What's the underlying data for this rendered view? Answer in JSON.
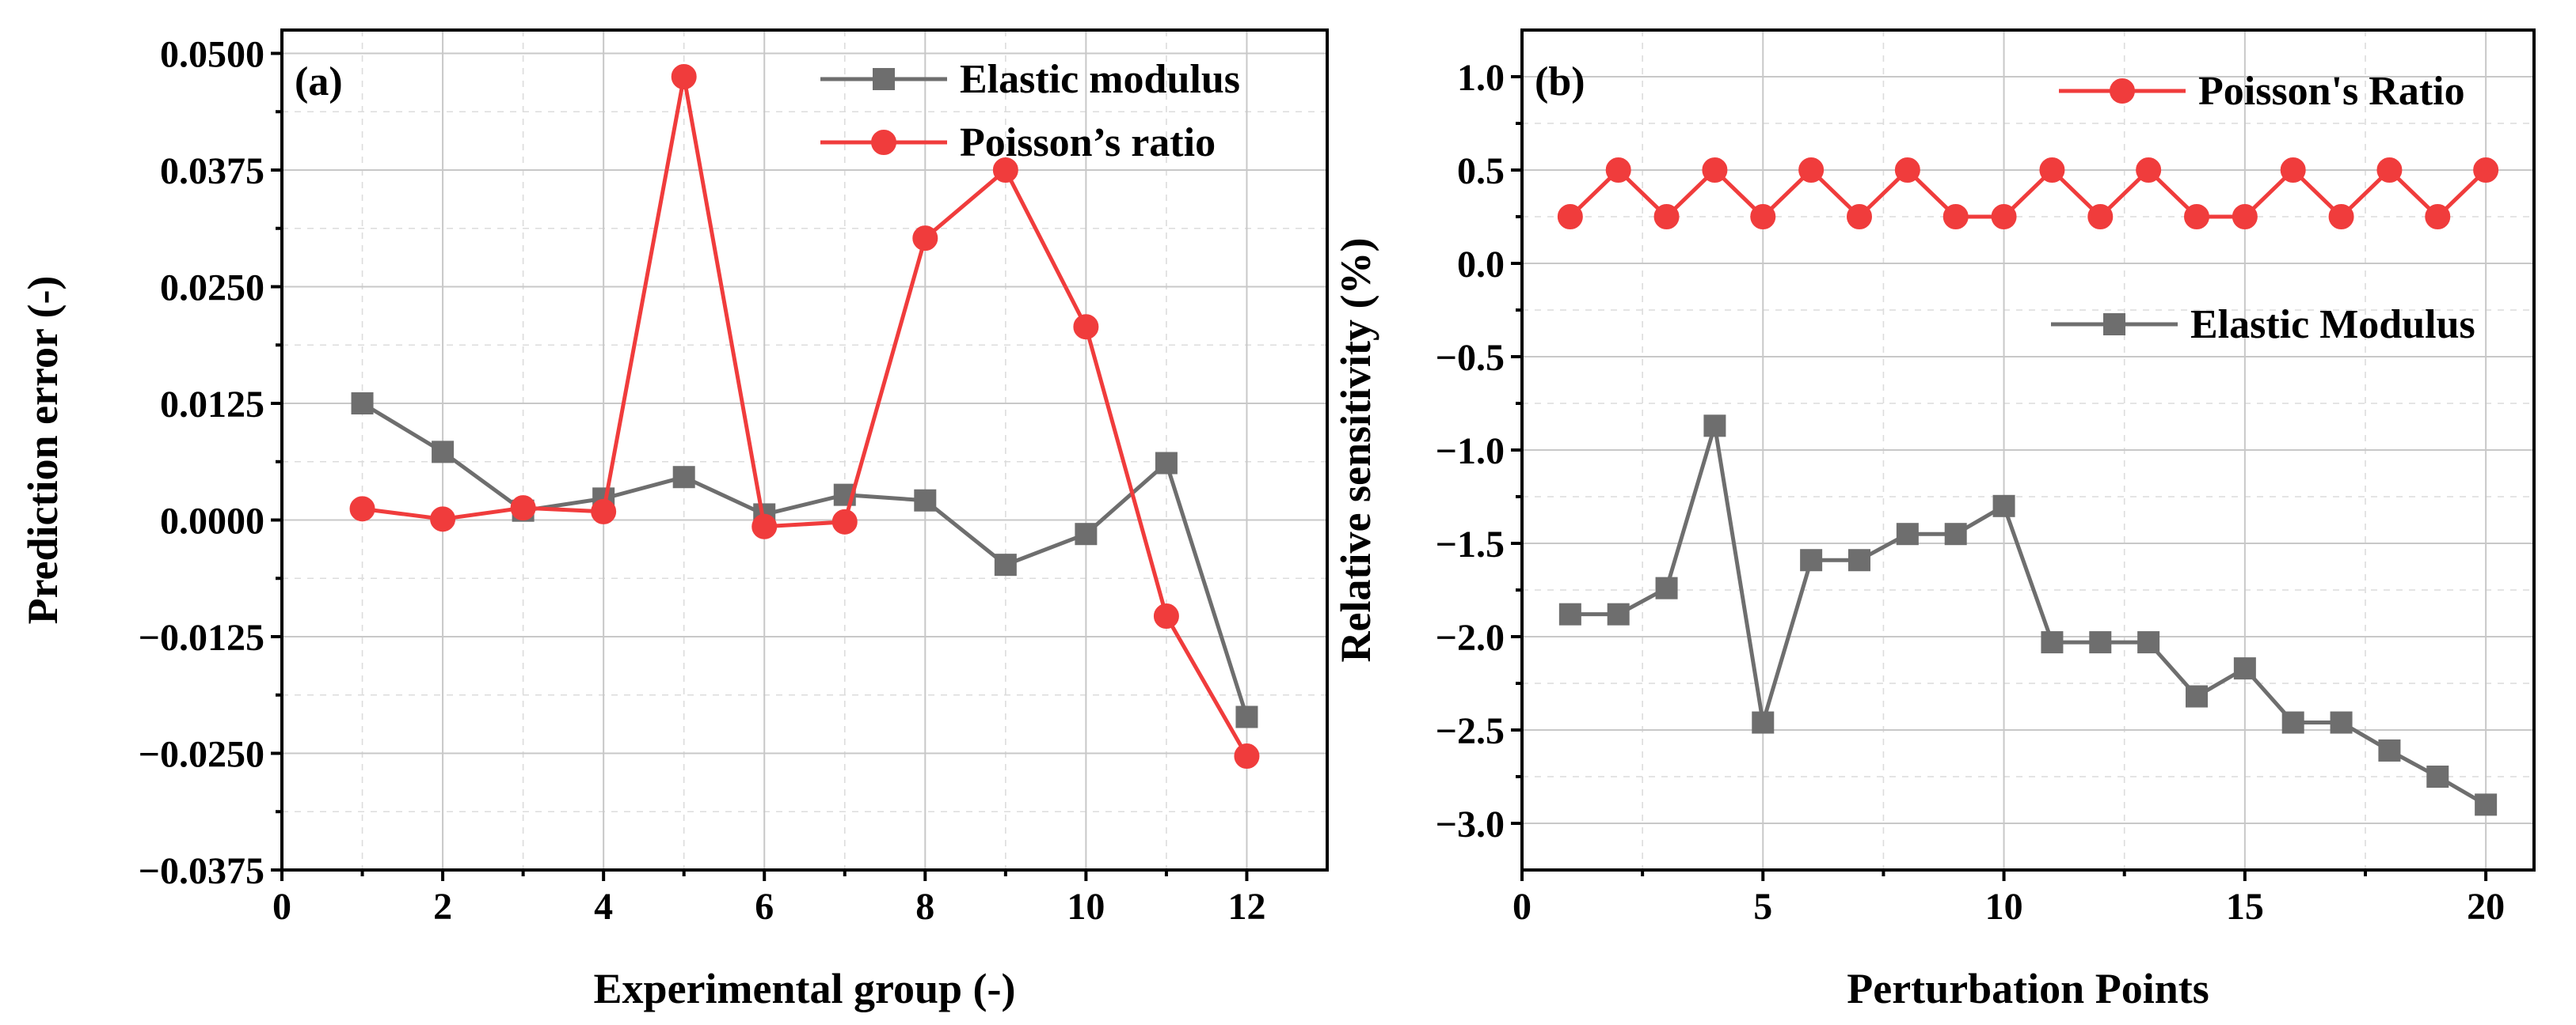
{
  "chart_data": [
    {
      "type": "line",
      "panel_label": "(a)",
      "xlabel": "Experimental group (-)",
      "ylabel": "Prediction error (-)",
      "xlim": [
        0,
        13
      ],
      "ylim": [
        -0.0375,
        0.0525
      ],
      "xticks": [
        0,
        2,
        4,
        6,
        8,
        10,
        12
      ],
      "xtick_labels": [
        "0",
        "2",
        "4",
        "6",
        "8",
        "10",
        "12"
      ],
      "yticks": [
        -0.0375,
        -0.025,
        -0.0125,
        0,
        0.0125,
        0.025,
        0.0375,
        0.05
      ],
      "ytick_labels": [
        "−0.0375",
        "−0.0250",
        "−0.0125",
        "0.0000",
        "0.0125",
        "0.0250",
        "0.0375",
        "0.0500"
      ],
      "grid": true,
      "legend_position": "top-right",
      "series": [
        {
          "name": "Elastic modulus",
          "color": "#6e6e6e",
          "marker": "square",
          "x": [
            1,
            2,
            3,
            4,
            5,
            6,
            7,
            8,
            9,
            10,
            11,
            12
          ],
          "values": [
            0.0125,
            0.0073,
            0.001,
            0.0023,
            0.0046,
            0.0006,
            0.0027,
            0.0021,
            -0.0048,
            -0.0015,
            0.0061,
            -0.0211
          ]
        },
        {
          "name": "Poisson’s ratio",
          "color": "#f03c3c",
          "marker": "circle",
          "x": [
            1,
            2,
            3,
            4,
            5,
            6,
            7,
            8,
            9,
            10,
            11,
            12
          ],
          "values": [
            0.0012,
            0.0001,
            0.0013,
            0.0009,
            0.0475,
            -0.0007,
            -0.0002,
            0.0302,
            0.0375,
            0.0207,
            -0.0103,
            -0.0253
          ]
        }
      ]
    },
    {
      "type": "line",
      "panel_label": "(b)",
      "xlabel": "Perturbation Points",
      "ylabel": "Relative sensitivity (%)",
      "xlim": [
        0,
        21
      ],
      "ylim": [
        -3.25,
        1.25
      ],
      "xticks": [
        0,
        5,
        10,
        15,
        20
      ],
      "xtick_labels": [
        "0",
        "5",
        "10",
        "15",
        "20"
      ],
      "yticks": [
        -3,
        -2.5,
        -2,
        -1.5,
        -1,
        -0.5,
        0,
        0.5,
        1
      ],
      "ytick_labels": [
        "−3.0",
        "−2.5",
        "−2.0",
        "−1.5",
        "−1.0",
        "−0.5",
        "0.0",
        "0.5",
        "1.0"
      ],
      "grid": true,
      "legend_position": "top-right",
      "series": [
        {
          "name": "Poisson's Ratio",
          "color": "#f03c3c",
          "marker": "circle",
          "x": [
            1,
            2,
            3,
            4,
            5,
            6,
            7,
            8,
            9,
            10,
            11,
            12,
            13,
            14,
            15,
            16,
            17,
            18,
            19,
            20
          ],
          "values": [
            0.25,
            0.5,
            0.25,
            0.5,
            0.25,
            0.5,
            0.25,
            0.5,
            0.25,
            0.25,
            0.5,
            0.25,
            0.5,
            0.25,
            0.25,
            0.5,
            0.25,
            0.5,
            0.25,
            0.5
          ]
        },
        {
          "name": "Elastic Modulus",
          "color": "#6e6e6e",
          "marker": "square",
          "x": [
            1,
            2,
            3,
            4,
            5,
            6,
            7,
            8,
            9,
            10,
            11,
            12,
            13,
            14,
            15,
            16,
            17,
            18,
            19,
            20
          ],
          "values": [
            -1.88,
            -1.88,
            -1.74,
            -0.87,
            -2.46,
            -1.59,
            -1.59,
            -1.45,
            -1.45,
            -1.3,
            -2.03,
            -2.03,
            -2.03,
            -2.32,
            -2.17,
            -2.46,
            -2.46,
            -2.61,
            -2.75,
            -2.9
          ]
        }
      ]
    }
  ]
}
